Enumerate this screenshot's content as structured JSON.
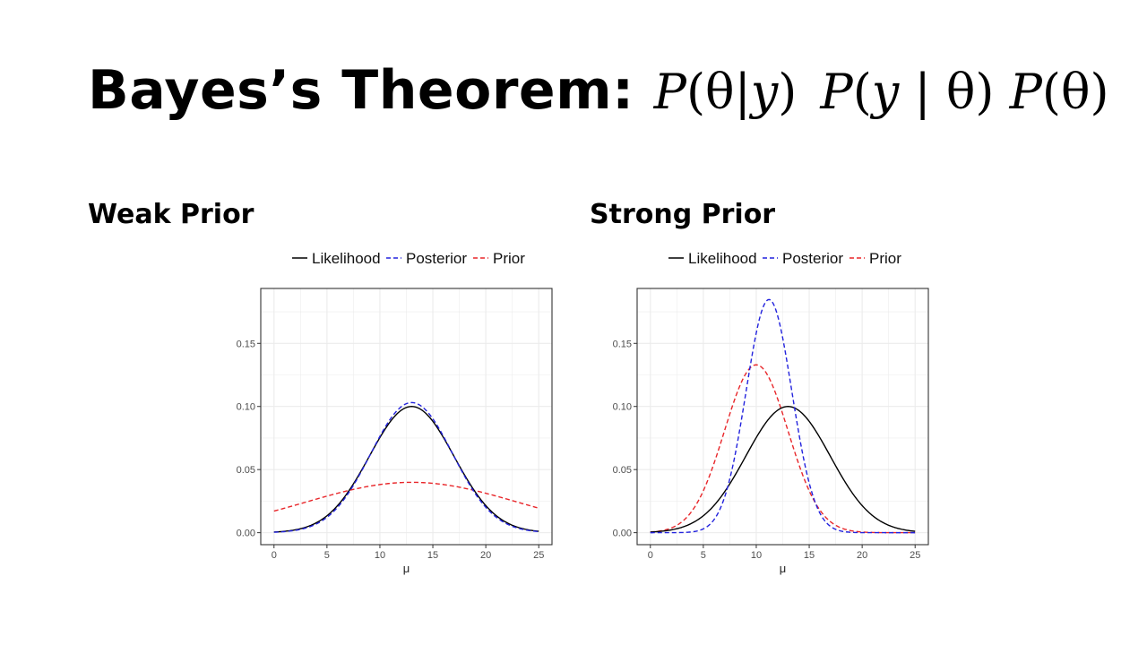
{
  "slide": {
    "title": "Bayes’s Theorem:",
    "formula": {
      "p1": "P",
      "a1": "(θ|",
      "y1": "y",
      "b1": ")",
      "p2": "P",
      "a2": "(",
      "y2": "y",
      "b2": " | θ)",
      "p3": "P",
      "a3": "(θ)"
    }
  },
  "chart_data": [
    {
      "type": "line",
      "title": "Weak Prior",
      "xlabel": "μ",
      "ylabel": "",
      "xlim": [
        -1.25,
        26.25
      ],
      "ylim": [
        -0.0095,
        0.1935
      ],
      "x_ticks": [
        0,
        5,
        10,
        15,
        20,
        25
      ],
      "y_ticks": [
        0.0,
        0.05,
        0.1,
        0.15
      ],
      "y_tick_labels": [
        "0.00",
        "0.05",
        "0.10",
        "0.15"
      ],
      "grid": true,
      "legend_position": "top",
      "series": [
        {
          "name": "Likelihood",
          "color": "#000000",
          "dash": "solid",
          "distribution": {
            "mean": 13,
            "sd": 3.99
          }
        },
        {
          "name": "Posterior",
          "color": "#2222dd",
          "dash": "dashed",
          "distribution": {
            "mean": 13,
            "sd": 3.87
          }
        },
        {
          "name": "Prior",
          "color": "#e8262a",
          "dash": "dashed",
          "distribution": {
            "mean": 13,
            "sd": 10
          }
        }
      ]
    },
    {
      "type": "line",
      "title": "Strong Prior",
      "xlabel": "μ",
      "ylabel": "",
      "xlim": [
        -1.25,
        26.25
      ],
      "ylim": [
        -0.0095,
        0.1935
      ],
      "x_ticks": [
        0,
        5,
        10,
        15,
        20,
        25
      ],
      "y_ticks": [
        0.0,
        0.05,
        0.1,
        0.15
      ],
      "y_tick_labels": [
        "0.00",
        "0.05",
        "0.10",
        "0.15"
      ],
      "grid": true,
      "legend_position": "top",
      "series": [
        {
          "name": "Likelihood",
          "color": "#000000",
          "dash": "solid",
          "distribution": {
            "mean": 13,
            "sd": 3.99
          }
        },
        {
          "name": "Posterior",
          "color": "#2222dd",
          "dash": "dashed",
          "distribution": {
            "mean": 11.2,
            "sd": 2.16
          }
        },
        {
          "name": "Prior",
          "color": "#e8262a",
          "dash": "dashed",
          "distribution": {
            "mean": 10,
            "sd": 3.0
          }
        }
      ]
    }
  ]
}
